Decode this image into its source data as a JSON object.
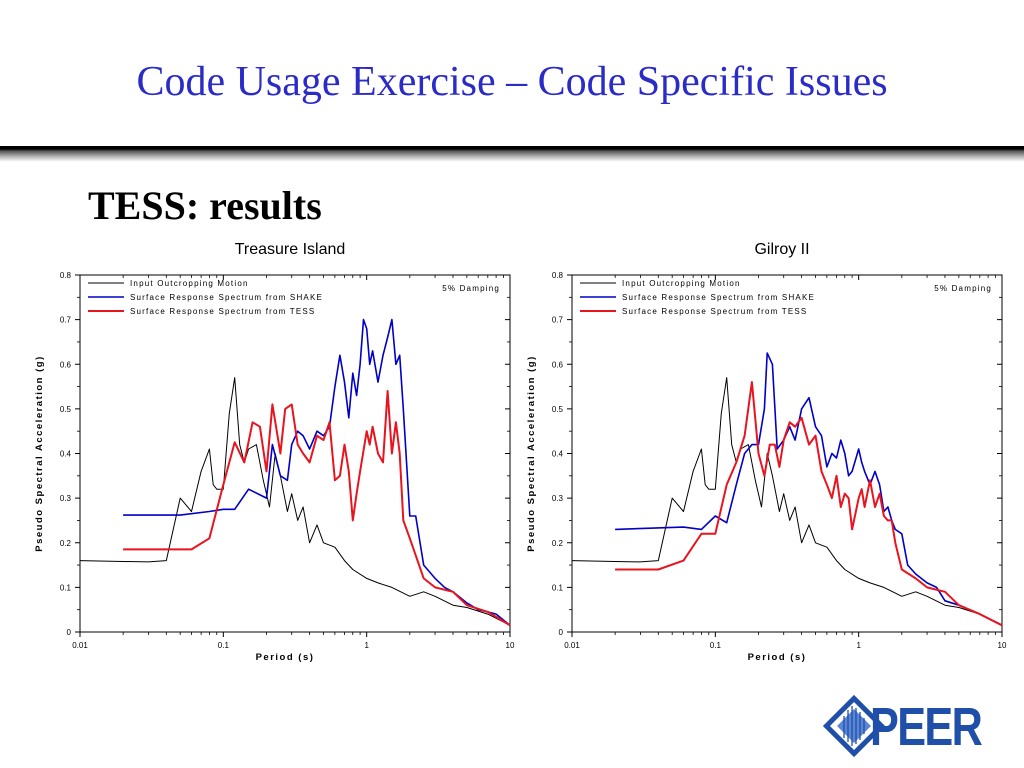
{
  "slide": {
    "title": "Code Usage Exercise – Code Specific Issues",
    "subtitle": "TESS: results"
  },
  "logo": {
    "text": "PEER"
  },
  "colors": {
    "title": "#2b2bc8",
    "input": "#000000",
    "shake": "#0000c8",
    "tess": "#e8141e"
  },
  "chart_data": [
    {
      "type": "line",
      "title": "Treasure Island",
      "xlabel": "Period (s)",
      "ylabel": "Pseudo Spectral Acceleration (g)",
      "xscale": "log",
      "xlim": [
        0.01,
        10
      ],
      "ylim": [
        0,
        0.8
      ],
      "xticks": [
        "0.01",
        "0.1",
        "1",
        "10"
      ],
      "yticks": [
        "0",
        "0.1",
        "0.2",
        "0.3",
        "0.4",
        "0.5",
        "0.6",
        "0.7",
        "0.8"
      ],
      "annotation": "5% Damping",
      "legend_position": "top-left",
      "series": [
        {
          "name": "Input Outcropping Motion",
          "color": "#000000",
          "x": [
            0.01,
            0.02,
            0.03,
            0.04,
            0.05,
            0.06,
            0.07,
            0.08,
            0.085,
            0.09,
            0.1,
            0.11,
            0.12,
            0.13,
            0.14,
            0.15,
            0.17,
            0.19,
            0.21,
            0.23,
            0.25,
            0.28,
            0.3,
            0.33,
            0.36,
            0.4,
            0.45,
            0.5,
            0.6,
            0.7,
            0.8,
            1.0,
            1.2,
            1.5,
            2.0,
            2.5,
            3.0,
            4.0,
            5.0,
            7.0,
            10.0
          ],
          "y": [
            0.16,
            0.158,
            0.157,
            0.16,
            0.3,
            0.27,
            0.36,
            0.41,
            0.33,
            0.32,
            0.32,
            0.49,
            0.57,
            0.42,
            0.38,
            0.41,
            0.42,
            0.34,
            0.28,
            0.4,
            0.35,
            0.27,
            0.31,
            0.25,
            0.28,
            0.2,
            0.24,
            0.2,
            0.19,
            0.16,
            0.14,
            0.12,
            0.11,
            0.1,
            0.08,
            0.09,
            0.08,
            0.06,
            0.055,
            0.04,
            0.015
          ]
        },
        {
          "name": "Surface Response Spectrum from SHAKE",
          "color": "#0000c8",
          "x": [
            0.02,
            0.05,
            0.08,
            0.1,
            0.12,
            0.15,
            0.2,
            0.22,
            0.25,
            0.28,
            0.3,
            0.33,
            0.36,
            0.4,
            0.45,
            0.5,
            0.55,
            0.6,
            0.65,
            0.7,
            0.75,
            0.8,
            0.85,
            0.9,
            0.95,
            1.0,
            1.05,
            1.1,
            1.2,
            1.3,
            1.4,
            1.5,
            1.6,
            1.7,
            1.8,
            2.0,
            2.2,
            2.5,
            3.0,
            3.5,
            4.0,
            5.0,
            6.0,
            7.0,
            8.0,
            10.0
          ],
          "y": [
            0.262,
            0.262,
            0.27,
            0.275,
            0.275,
            0.32,
            0.3,
            0.42,
            0.35,
            0.34,
            0.42,
            0.45,
            0.44,
            0.41,
            0.45,
            0.44,
            0.46,
            0.55,
            0.62,
            0.56,
            0.48,
            0.58,
            0.53,
            0.6,
            0.7,
            0.68,
            0.6,
            0.63,
            0.56,
            0.62,
            0.66,
            0.7,
            0.6,
            0.62,
            0.5,
            0.26,
            0.26,
            0.15,
            0.12,
            0.1,
            0.09,
            0.065,
            0.05,
            0.045,
            0.04,
            0.015
          ]
        },
        {
          "name": "Surface Response Spectrum from TESS",
          "color": "#e8141e",
          "x": [
            0.02,
            0.06,
            0.08,
            0.1,
            0.12,
            0.14,
            0.16,
            0.18,
            0.2,
            0.22,
            0.25,
            0.27,
            0.3,
            0.33,
            0.36,
            0.4,
            0.45,
            0.5,
            0.55,
            0.6,
            0.65,
            0.7,
            0.75,
            0.8,
            0.85,
            0.9,
            1.0,
            1.05,
            1.1,
            1.2,
            1.3,
            1.4,
            1.5,
            1.6,
            1.7,
            1.8,
            2.0,
            2.5,
            3.0,
            4.0,
            5.0,
            7.0,
            10.0
          ],
          "y": [
            0.185,
            0.185,
            0.21,
            0.33,
            0.425,
            0.38,
            0.47,
            0.46,
            0.36,
            0.51,
            0.4,
            0.5,
            0.51,
            0.42,
            0.4,
            0.38,
            0.44,
            0.43,
            0.47,
            0.34,
            0.35,
            0.42,
            0.36,
            0.25,
            0.31,
            0.36,
            0.45,
            0.42,
            0.46,
            0.4,
            0.38,
            0.54,
            0.4,
            0.47,
            0.4,
            0.25,
            0.21,
            0.12,
            0.1,
            0.09,
            0.06,
            0.045,
            0.015
          ]
        }
      ]
    },
    {
      "type": "line",
      "title": "Gilroy II",
      "xlabel": "Period (s)",
      "ylabel": "Pseudo Spectral Acceleration (g)",
      "xscale": "log",
      "xlim": [
        0.01,
        10
      ],
      "ylim": [
        0,
        0.8
      ],
      "xticks": [
        "0.01",
        "0.1",
        "1",
        "10"
      ],
      "yticks": [
        "0",
        "0.1",
        "0.2",
        "0.3",
        "0.4",
        "0.5",
        "0.6",
        "0.7",
        "0.8"
      ],
      "annotation": "5% Damping",
      "legend_position": "top-left",
      "series": [
        {
          "name": "Input Outcropping Motion",
          "color": "#000000",
          "x": [
            0.01,
            0.02,
            0.03,
            0.04,
            0.05,
            0.06,
            0.07,
            0.08,
            0.085,
            0.09,
            0.1,
            0.11,
            0.12,
            0.13,
            0.14,
            0.15,
            0.17,
            0.19,
            0.21,
            0.23,
            0.25,
            0.28,
            0.3,
            0.33,
            0.36,
            0.4,
            0.45,
            0.5,
            0.6,
            0.7,
            0.8,
            1.0,
            1.2,
            1.5,
            2.0,
            2.5,
            3.0,
            4.0,
            5.0,
            7.0,
            10.0
          ],
          "y": [
            0.16,
            0.158,
            0.157,
            0.16,
            0.3,
            0.27,
            0.36,
            0.41,
            0.33,
            0.32,
            0.32,
            0.49,
            0.57,
            0.42,
            0.38,
            0.41,
            0.42,
            0.34,
            0.28,
            0.4,
            0.35,
            0.27,
            0.31,
            0.25,
            0.28,
            0.2,
            0.24,
            0.2,
            0.19,
            0.16,
            0.14,
            0.12,
            0.11,
            0.1,
            0.08,
            0.09,
            0.08,
            0.06,
            0.055,
            0.04,
            0.015
          ]
        },
        {
          "name": "Surface Response Spectrum from SHAKE",
          "color": "#0000c8",
          "x": [
            0.02,
            0.06,
            0.08,
            0.1,
            0.12,
            0.14,
            0.16,
            0.18,
            0.2,
            0.22,
            0.23,
            0.25,
            0.27,
            0.3,
            0.33,
            0.36,
            0.4,
            0.45,
            0.5,
            0.55,
            0.6,
            0.65,
            0.7,
            0.75,
            0.8,
            0.85,
            0.9,
            1.0,
            1.05,
            1.1,
            1.2,
            1.3,
            1.4,
            1.5,
            1.6,
            1.7,
            1.8,
            2.0,
            2.2,
            2.5,
            3.0,
            3.5,
            4.0,
            5.0,
            7.0,
            10.0
          ],
          "y": [
            0.23,
            0.235,
            0.23,
            0.26,
            0.245,
            0.33,
            0.4,
            0.42,
            0.42,
            0.5,
            0.625,
            0.6,
            0.41,
            0.43,
            0.46,
            0.43,
            0.5,
            0.525,
            0.46,
            0.44,
            0.37,
            0.4,
            0.39,
            0.43,
            0.4,
            0.35,
            0.36,
            0.41,
            0.38,
            0.36,
            0.33,
            0.36,
            0.33,
            0.27,
            0.28,
            0.25,
            0.23,
            0.22,
            0.15,
            0.13,
            0.11,
            0.1,
            0.07,
            0.06,
            0.04,
            0.015
          ]
        },
        {
          "name": "Surface Response Spectrum from TESS",
          "color": "#e8141e",
          "x": [
            0.02,
            0.04,
            0.06,
            0.08,
            0.1,
            0.12,
            0.14,
            0.16,
            0.18,
            0.2,
            0.22,
            0.24,
            0.26,
            0.28,
            0.3,
            0.33,
            0.36,
            0.4,
            0.45,
            0.5,
            0.55,
            0.6,
            0.65,
            0.7,
            0.75,
            0.8,
            0.85,
            0.9,
            1.0,
            1.05,
            1.1,
            1.2,
            1.3,
            1.4,
            1.5,
            1.6,
            1.7,
            1.8,
            2.0,
            2.5,
            3.0,
            4.0,
            5.0,
            7.0,
            10.0
          ],
          "y": [
            0.14,
            0.14,
            0.16,
            0.22,
            0.22,
            0.33,
            0.38,
            0.44,
            0.56,
            0.4,
            0.35,
            0.42,
            0.42,
            0.37,
            0.43,
            0.47,
            0.46,
            0.48,
            0.42,
            0.44,
            0.36,
            0.33,
            0.3,
            0.35,
            0.28,
            0.31,
            0.3,
            0.23,
            0.3,
            0.32,
            0.28,
            0.34,
            0.28,
            0.31,
            0.26,
            0.25,
            0.25,
            0.2,
            0.14,
            0.12,
            0.1,
            0.09,
            0.06,
            0.04,
            0.015
          ]
        }
      ]
    }
  ]
}
